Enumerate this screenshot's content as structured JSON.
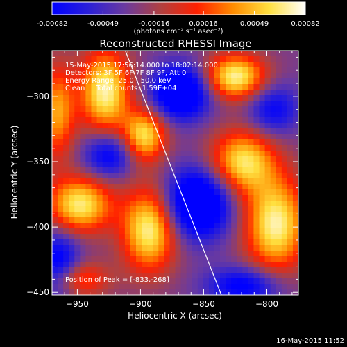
{
  "colorbar": {
    "tick_labels": [
      "-0.00082",
      "-0.00049",
      "-0.00016",
      "0.00016",
      "0.00049",
      "0.00082"
    ],
    "unit_label": "(photons cm⁻² s⁻¹ asec⁻²)",
    "range": [
      -0.00082,
      0.00082
    ],
    "stops": [
      "#0000ff",
      "#2a1fd8",
      "#6a3aa0",
      "#b04040",
      "#ff2000",
      "#ff8c00",
      "#ffe040",
      "#ffffff"
    ]
  },
  "chart_data": {
    "type": "heatmap",
    "title": "Reconstructed RHESSI Image",
    "xlabel": "Heliocentric X (arcsec)",
    "ylabel": "Heliocentric Y (arcsec)",
    "xlim": [
      -970,
      -775
    ],
    "ylim": [
      -452,
      -265
    ],
    "x_ticks": [
      -950,
      -900,
      -850,
      -800
    ],
    "y_ticks": [
      -300,
      -350,
      -400,
      -450
    ],
    "annotation_lines": [
      "15-May-2015 17:56:14.000 to 18:02:14.000",
      "Detectors: 3F 5F 6F 7F 8F 9F, Att 0",
      "Energy Range: 25.0 - 50.0 keV",
      "Clean     Total counts: 1.59E+04"
    ],
    "peak_label": "Position of Peak = [-833,-268]",
    "limb_line": {
      "x": [
        -912,
        -836
      ],
      "y": [
        -265,
        -452
      ]
    },
    "blobs": [
      {
        "x": -928,
        "y": -296,
        "sx": 14,
        "sy": 22,
        "amp": 1.0
      },
      {
        "x": -825,
        "y": -285,
        "sx": 17,
        "sy": 12,
        "amp": 1.0
      },
      {
        "x": -897,
        "y": -330,
        "sx": 12,
        "sy": 14,
        "amp": 0.9
      },
      {
        "x": -819,
        "y": -350,
        "sx": 18,
        "sy": 17,
        "amp": 0.9
      },
      {
        "x": -948,
        "y": -383,
        "sx": 18,
        "sy": 15,
        "amp": 0.95
      },
      {
        "x": -893,
        "y": -402,
        "sx": 15,
        "sy": 22,
        "amp": 1.0
      },
      {
        "x": -793,
        "y": -398,
        "sx": 17,
        "sy": 25,
        "amp": 1.0
      },
      {
        "x": -966,
        "y": -312,
        "sx": 10,
        "sy": 25,
        "amp": 0.7
      },
      {
        "x": -952,
        "y": -440,
        "sx": 18,
        "sy": 10,
        "amp": 0.6
      },
      {
        "x": -868,
        "y": -297,
        "sx": 16,
        "sy": 14,
        "amp": -0.95
      },
      {
        "x": -925,
        "y": -345,
        "sx": 14,
        "sy": 12,
        "amp": -0.6
      },
      {
        "x": -855,
        "y": -382,
        "sx": 18,
        "sy": 18,
        "amp": -1.0
      },
      {
        "x": -965,
        "y": -430,
        "sx": 12,
        "sy": 18,
        "amp": -0.7
      },
      {
        "x": -795,
        "y": -310,
        "sx": 14,
        "sy": 14,
        "amp": -0.5
      },
      {
        "x": -818,
        "y": -445,
        "sx": 20,
        "sy": 10,
        "amp": -0.6
      }
    ],
    "grid": false,
    "legend": "none"
  },
  "footer_timestamp": "16-May-2015 11:52"
}
